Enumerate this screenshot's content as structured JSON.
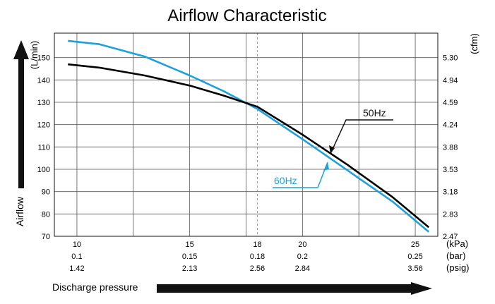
{
  "chart_data": {
    "type": "line",
    "title": "Airflow Characteristic",
    "ylabel": "Airflow",
    "ylabel_unit_left": "(L/min)",
    "ylabel_unit_right": "(cfm)",
    "xlabel": "Discharge pressure",
    "ylim": [
      70,
      160
    ],
    "xlim": [
      9,
      26
    ],
    "grid": true,
    "y_ticks_left": [
      "70",
      "80",
      "90",
      "100",
      "110",
      "120",
      "130",
      "140",
      "150"
    ],
    "y_ticks_right": [
      "2.47",
      "2.83",
      "3.18",
      "3.53",
      "3.88",
      "4.24",
      "4.59",
      "4.94",
      "5.30"
    ],
    "x_tick_values": [
      10,
      15,
      18,
      20,
      25
    ],
    "x_ticks_kpa": [
      "10",
      "15",
      "18",
      "20",
      "25"
    ],
    "x_ticks_bar": [
      "0.1",
      "0.15",
      "0.18",
      "0.2",
      "0.25"
    ],
    "x_ticks_psig": [
      "1.42",
      "2.13",
      "2.56",
      "2.84",
      "3.56"
    ],
    "x_unit_kpa": "(kPa)",
    "x_unit_bar": "(bar)",
    "x_unit_psig": "(psig)",
    "series": [
      {
        "name": "50Hz",
        "color": "#000000",
        "x": [
          9.6,
          11,
          13,
          15,
          16.5,
          18,
          20,
          22,
          24,
          25.6
        ],
        "y": [
          147,
          145.5,
          142,
          137.5,
          133,
          128,
          115.5,
          102,
          87.5,
          74
        ]
      },
      {
        "name": "60Hz",
        "color": "#1da1dc",
        "x": [
          9.6,
          11,
          13,
          15,
          16.5,
          18,
          20,
          22,
          24,
          25.6
        ],
        "y": [
          157.5,
          156,
          150.5,
          142,
          135,
          127,
          113.5,
          99.5,
          85.5,
          72
        ]
      }
    ]
  }
}
